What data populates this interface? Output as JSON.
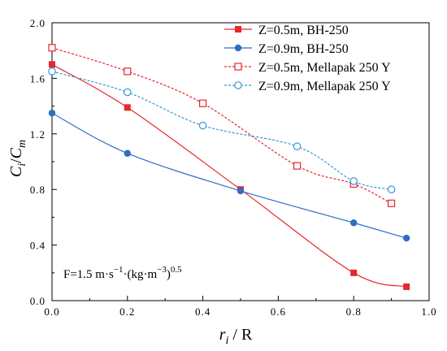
{
  "chart_data": {
    "type": "line",
    "xlabel": {
      "main": "r",
      "sub": "i",
      "rest": " / R"
    },
    "ylabel": {
      "main": "C",
      "sub": "i",
      "slash": "/",
      "main2": "C",
      "sub2": "m"
    },
    "xlim": [
      0.0,
      1.0
    ],
    "ylim": [
      0.0,
      2.0
    ],
    "xticks": [
      "0.0",
      "0.2",
      "0.4",
      "0.6",
      "0.8",
      "1.0"
    ],
    "yticks": [
      "0.0",
      "0.4",
      "0.8",
      "1.2",
      "1.6",
      "2.0"
    ],
    "annotation": {
      "base": "F=1.5 m·s",
      "exp1": "−1",
      "mid": "·(kg·m",
      "exp2": "−3",
      "close": ")",
      "exp3": "0.5"
    },
    "legend_position": "top-right",
    "series": [
      {
        "name": "Z=0.5m, BH-250",
        "color": "#e8262d",
        "dashed": false,
        "marker": "filled-square",
        "x": [
          0.0,
          0.2,
          0.5,
          0.8,
          0.94
        ],
        "y": [
          1.7,
          1.39,
          0.8,
          0.2,
          0.1
        ]
      },
      {
        "name": "Z=0.9m, BH-250",
        "color": "#2e6fc1",
        "dashed": false,
        "marker": "filled-circle",
        "x": [
          0.0,
          0.2,
          0.5,
          0.8,
          0.94
        ],
        "y": [
          1.35,
          1.06,
          0.79,
          0.56,
          0.45
        ]
      },
      {
        "name": "Z=0.5m, Mellapak 250 Y",
        "color": "#e8262d",
        "dashed": true,
        "marker": "open-square",
        "x": [
          0.0,
          0.2,
          0.4,
          0.65,
          0.8,
          0.9
        ],
        "y": [
          1.82,
          1.65,
          1.42,
          0.97,
          0.84,
          0.7
        ]
      },
      {
        "name": "Z=0.9m, Mellapak 250 Y",
        "color": "#2e9ad6",
        "dashed": true,
        "marker": "open-circle",
        "x": [
          0.0,
          0.2,
          0.4,
          0.65,
          0.8,
          0.9
        ],
        "y": [
          1.65,
          1.5,
          1.26,
          1.11,
          0.86,
          0.8
        ]
      }
    ]
  }
}
